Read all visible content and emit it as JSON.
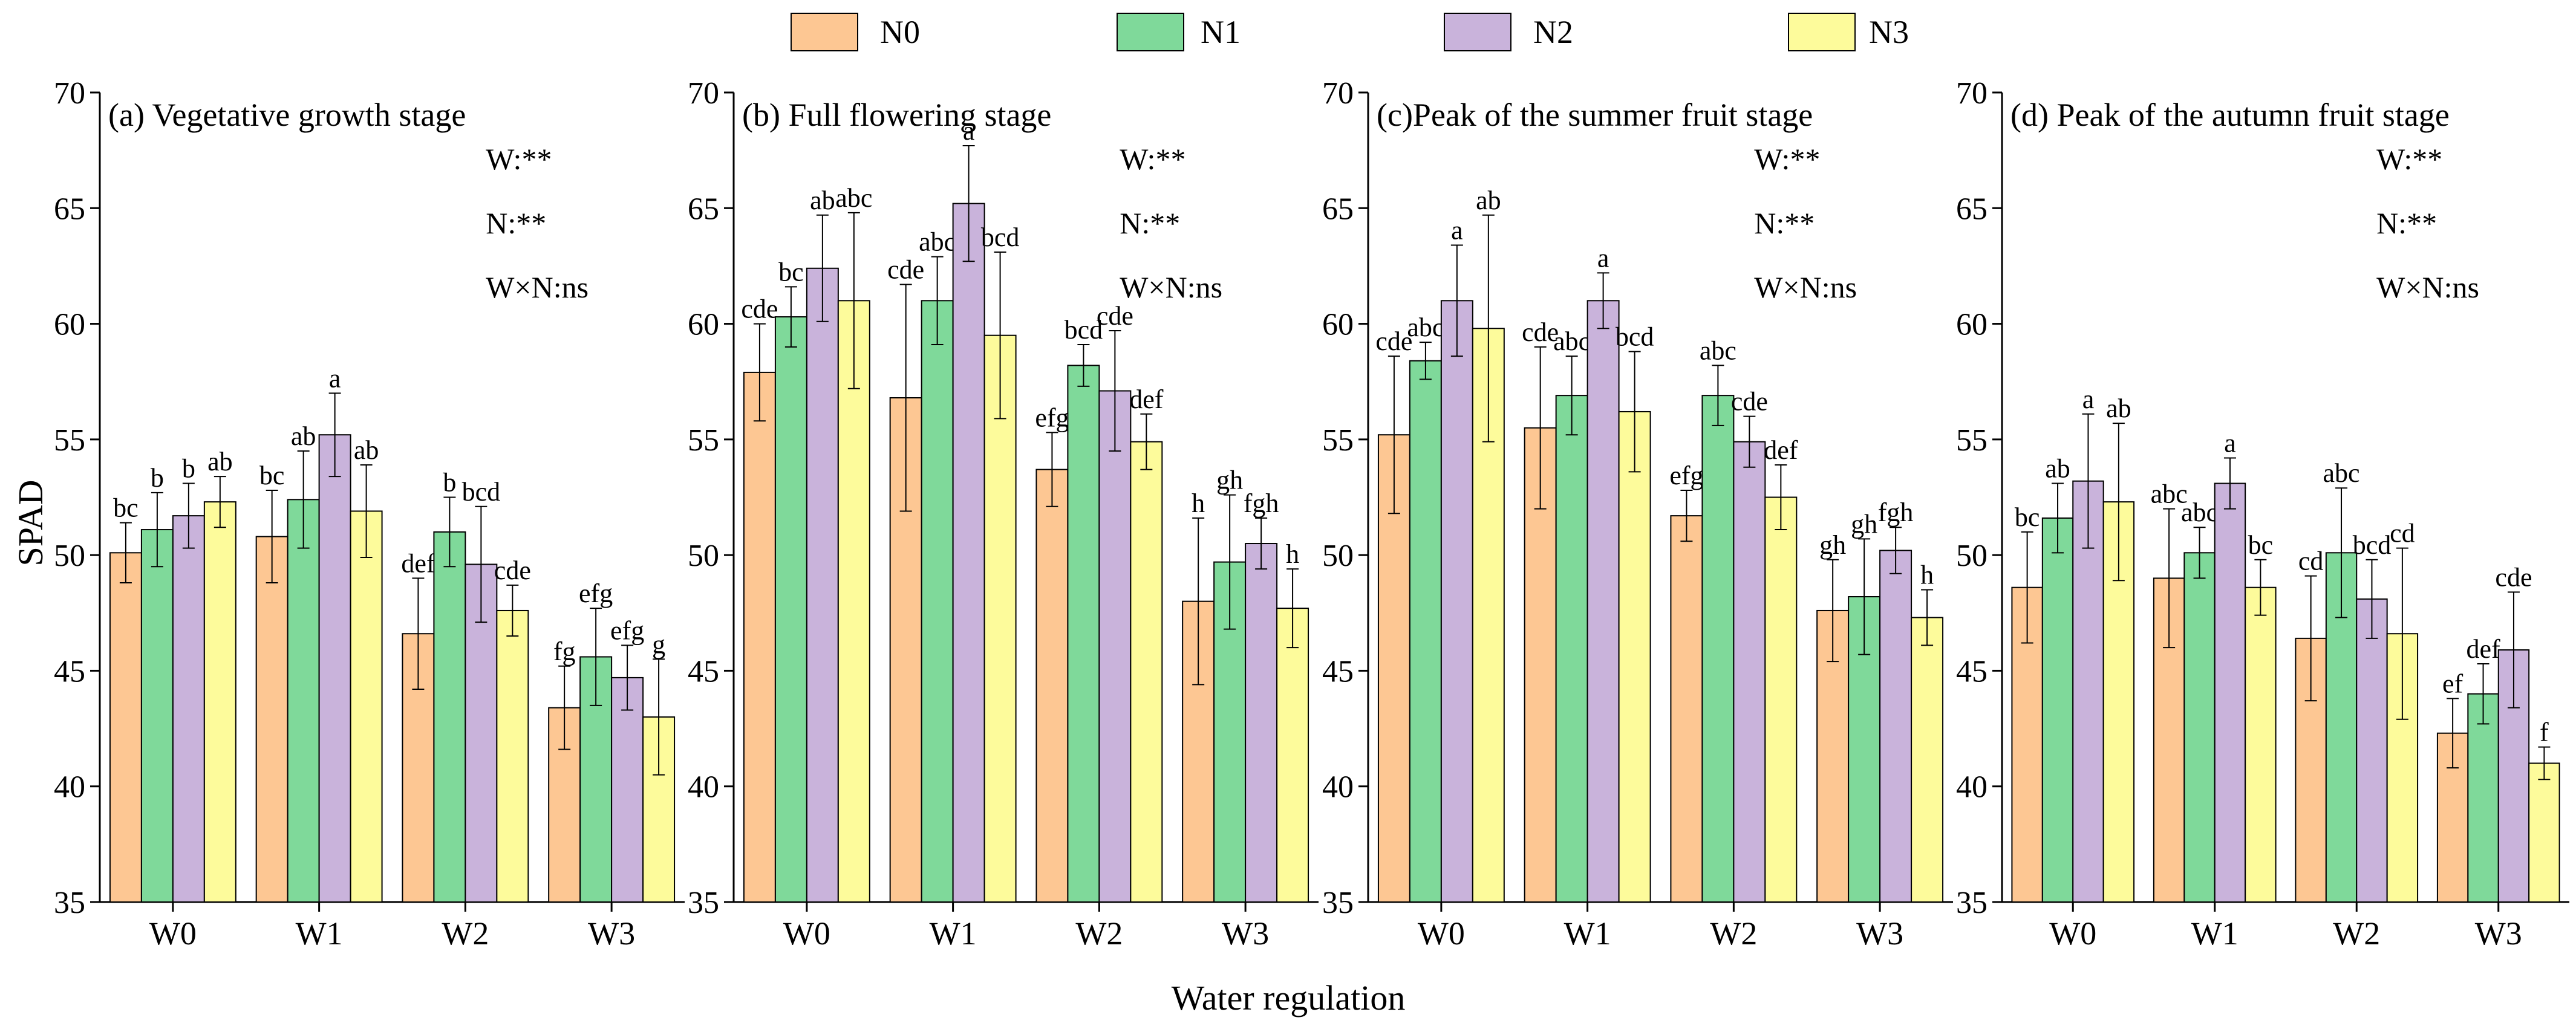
{
  "colors": {
    "N0": "#FDC793",
    "N1": "#7FD99A",
    "N2": "#C9B3DB",
    "N3": "#FDFB9B"
  },
  "legend": [
    "N0",
    "N1",
    "N2",
    "N3"
  ],
  "ylabel": "SPAD",
  "xlabel": "Water regulation",
  "chart_data": [
    {
      "type": "bar",
      "title": "(a) Vegetative growth stage",
      "categories": [
        "W0",
        "W1",
        "W2",
        "W3"
      ],
      "ylim": [
        35,
        70
      ],
      "yticks": [
        35,
        40,
        45,
        50,
        55,
        60,
        65,
        70
      ],
      "stats": [
        "W:**",
        "N:**",
        "W×N:ns"
      ],
      "series": [
        {
          "name": "N0",
          "values": [
            50.1,
            50.8,
            46.6,
            43.4
          ],
          "errors": [
            1.3,
            2.0,
            2.4,
            1.8
          ],
          "letters": [
            "bc",
            "bc",
            "def",
            "fg"
          ]
        },
        {
          "name": "N1",
          "values": [
            51.1,
            52.4,
            51.0,
            45.6
          ],
          "errors": [
            1.6,
            2.1,
            1.5,
            2.1
          ],
          "letters": [
            "b",
            "ab",
            "b",
            "efg"
          ]
        },
        {
          "name": "N2",
          "values": [
            51.7,
            55.2,
            49.6,
            44.7
          ],
          "errors": [
            1.4,
            1.8,
            2.5,
            1.4
          ],
          "letters": [
            "b",
            "a",
            "bcd",
            "efg"
          ]
        },
        {
          "name": "N3",
          "values": [
            52.3,
            51.9,
            47.6,
            43.0
          ],
          "errors": [
            1.1,
            2.0,
            1.1,
            2.5
          ],
          "letters": [
            "ab",
            "ab",
            "cde",
            "g"
          ]
        }
      ]
    },
    {
      "type": "bar",
      "title": "(b) Full flowering stage",
      "categories": [
        "W0",
        "W1",
        "W2",
        "W3"
      ],
      "ylim": [
        35,
        70
      ],
      "yticks": [
        35,
        40,
        45,
        50,
        55,
        60,
        65,
        70
      ],
      "stats": [
        "W:**",
        "N:**",
        "W×N:ns"
      ],
      "series": [
        {
          "name": "N0",
          "values": [
            57.9,
            56.8,
            53.7,
            48.0
          ],
          "errors": [
            2.1,
            4.9,
            1.6,
            3.6
          ],
          "letters": [
            "cde",
            "cde",
            "efg",
            "h"
          ]
        },
        {
          "name": "N1",
          "values": [
            60.3,
            61.0,
            58.2,
            49.7
          ],
          "errors": [
            1.3,
            1.9,
            0.9,
            2.9
          ],
          "letters": [
            "bc",
            "abc",
            "bcd",
            "gh"
          ]
        },
        {
          "name": "N2",
          "values": [
            62.4,
            65.2,
            57.1,
            50.5
          ],
          "errors": [
            2.3,
            2.5,
            2.6,
            1.1
          ],
          "letters": [
            "ab",
            "a",
            "cde",
            "fgh"
          ]
        },
        {
          "name": "N3",
          "values": [
            61.0,
            59.5,
            54.9,
            47.7
          ],
          "errors": [
            3.8,
            3.6,
            1.2,
            1.7
          ],
          "letters": [
            "abc",
            "bcd",
            "def",
            "h"
          ]
        }
      ]
    },
    {
      "type": "bar",
      "title": "(c)Peak of the summer fruit stage",
      "categories": [
        "W0",
        "W1",
        "W2",
        "W3"
      ],
      "ylim": [
        35,
        70
      ],
      "yticks": [
        35,
        40,
        45,
        50,
        55,
        60,
        65,
        70
      ],
      "stats": [
        "W:**",
        "N:**",
        "W×N:ns"
      ],
      "series": [
        {
          "name": "N0",
          "values": [
            55.2,
            55.5,
            51.7,
            47.6
          ],
          "errors": [
            3.4,
            3.5,
            1.1,
            2.2
          ],
          "letters": [
            "cde",
            "cde",
            "efg",
            "gh"
          ]
        },
        {
          "name": "N1",
          "values": [
            58.4,
            56.9,
            56.9,
            48.2
          ],
          "errors": [
            0.8,
            1.7,
            1.3,
            2.5
          ],
          "letters": [
            "abc",
            "abc",
            "abc",
            "gh"
          ]
        },
        {
          "name": "N2",
          "values": [
            61.0,
            61.0,
            54.9,
            50.2
          ],
          "errors": [
            2.4,
            1.2,
            1.1,
            1.0
          ],
          "letters": [
            "a",
            "a",
            "cde",
            "fgh"
          ]
        },
        {
          "name": "N3",
          "values": [
            59.8,
            56.2,
            52.5,
            47.3
          ],
          "errors": [
            4.9,
            2.6,
            1.4,
            1.2
          ],
          "letters": [
            "ab",
            "bcd",
            "def",
            "h"
          ]
        }
      ]
    },
    {
      "type": "bar",
      "title": "(d) Peak of the autumn  fruit stage",
      "categories": [
        "W0",
        "W1",
        "W2",
        "W3"
      ],
      "ylim": [
        35,
        70
      ],
      "yticks": [
        35,
        40,
        45,
        50,
        55,
        60,
        65,
        70
      ],
      "stats": [
        "W:**",
        "N:**",
        "W×N:ns"
      ],
      "series": [
        {
          "name": "N0",
          "values": [
            48.6,
            49.0,
            46.4,
            42.3
          ],
          "errors": [
            2.4,
            3.0,
            2.7,
            1.5
          ],
          "letters": [
            "bc",
            "abc",
            "cd",
            "ef"
          ]
        },
        {
          "name": "N1",
          "values": [
            51.6,
            50.1,
            50.1,
            44.0
          ],
          "errors": [
            1.5,
            1.1,
            2.8,
            1.3
          ],
          "letters": [
            "ab",
            "abc",
            "abc",
            "def"
          ]
        },
        {
          "name": "N2",
          "values": [
            53.2,
            53.1,
            48.1,
            45.9
          ],
          "errors": [
            2.9,
            1.1,
            1.7,
            2.5
          ],
          "letters": [
            "a",
            "a",
            "bcd",
            "cde"
          ]
        },
        {
          "name": "N3",
          "values": [
            52.3,
            48.6,
            46.6,
            41.0
          ],
          "errors": [
            3.4,
            1.2,
            3.7,
            0.7
          ],
          "letters": [
            "ab",
            "bc",
            "cd",
            "f"
          ]
        }
      ]
    }
  ]
}
